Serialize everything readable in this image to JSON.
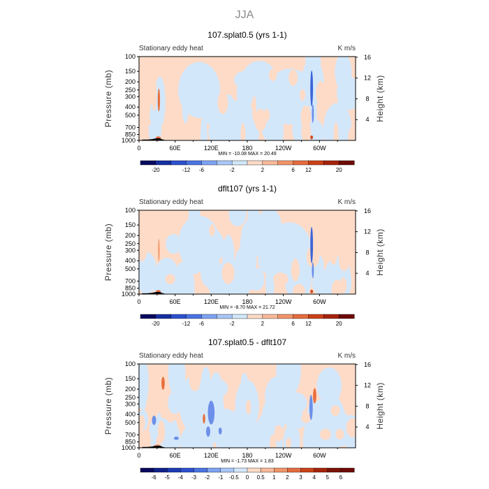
{
  "figure": {
    "season_title": "JJA",
    "colors": {
      "background": "#ffffff",
      "text": "#000000",
      "neg1": "#d3e7fb",
      "pos1": "#fddbc7",
      "neg3": "#3b64d8",
      "pos3": "#d2481e",
      "topography": "#000000"
    }
  },
  "chart_data": [
    {
      "type": "heatmap",
      "title": "107.splat0.5 (yrs 1-1)",
      "left_label": "Stationary eddy heat",
      "right_label": "K m/s",
      "ylabel": "Pressure (mb)",
      "ylabel_right": "Height (km)",
      "x_ticks": [
        "0",
        "60E",
        "120E",
        "180",
        "120W",
        "60W"
      ],
      "x_values": [
        0,
        60,
        120,
        180,
        240,
        300
      ],
      "xlim": [
        0,
        360
      ],
      "y_ticks": [
        "100",
        "150",
        "200",
        "250",
        "300",
        "400",
        "500",
        "700",
        "850",
        "1000"
      ],
      "y_values": [
        100,
        150,
        200,
        250,
        300,
        400,
        500,
        700,
        850,
        1000
      ],
      "ylim": [
        100,
        1000
      ],
      "height_ticks": [
        "4",
        "8",
        "12",
        "16"
      ],
      "height_values": [
        4,
        8,
        12,
        16
      ],
      "min_max_text": "MIN = -10.08   MAX = 20.49",
      "colorbar_labels": [
        "-20",
        "-12",
        "-6",
        "-2",
        "2",
        "6",
        "12",
        "20"
      ],
      "colorbar_colors": [
        "#08095e",
        "#1730a3",
        "#2d51cf",
        "#4a74e5",
        "#7ea3f2",
        "#a9c7f7",
        "#d3e7fb",
        "#fddbc7",
        "#f9b99a",
        "#f2946a",
        "#e66c3f",
        "#cc4218",
        "#a6230b",
        "#6e0a05"
      ],
      "blobs": [
        {
          "lon": 33,
          "p": 330,
          "rx": 1.4,
          "ry": 100,
          "level": 2
        },
        {
          "lon": 32,
          "p": 930,
          "rx": 3,
          "ry": 35,
          "level": 2
        },
        {
          "lon": 25,
          "p": 280,
          "rx": 3,
          "ry": 120,
          "level": 0
        },
        {
          "lon": 287,
          "p": 240,
          "rx": 1.6,
          "ry": 110,
          "level": -3
        },
        {
          "lon": 287,
          "p": 920,
          "rx": 1.6,
          "ry": 50,
          "level": 3
        },
        {
          "lon": 289,
          "p": 480,
          "rx": 1.2,
          "ry": 120,
          "level": -2
        }
      ]
    },
    {
      "type": "heatmap",
      "title": "dflt107 (yrs 1-1)",
      "left_label": "Stationary eddy heat",
      "right_label": "K m/s",
      "ylabel": "Pressure (mb)",
      "ylabel_right": "Height (km)",
      "x_ticks": [
        "0",
        "60E",
        "120E",
        "180",
        "120W",
        "60W"
      ],
      "x_values": [
        0,
        60,
        120,
        180,
        240,
        300
      ],
      "xlim": [
        0,
        360
      ],
      "y_ticks": [
        "100",
        "150",
        "200",
        "250",
        "300",
        "400",
        "500",
        "700",
        "850",
        "1000"
      ],
      "y_values": [
        100,
        150,
        200,
        250,
        300,
        400,
        500,
        700,
        850,
        1000
      ],
      "ylim": [
        100,
        1000
      ],
      "height_ticks": [
        "4",
        "8",
        "12",
        "16"
      ],
      "height_values": [
        4,
        8,
        12,
        16
      ],
      "min_max_text": "MIN = -8.70   MAX = 21.72",
      "colorbar_labels": [
        "-20",
        "-12",
        "-6",
        "-2",
        "2",
        "6",
        "12",
        "20"
      ],
      "colorbar_colors": [
        "#08095e",
        "#1730a3",
        "#2d51cf",
        "#4a74e5",
        "#7ea3f2",
        "#a9c7f7",
        "#d3e7fb",
        "#fddbc7",
        "#f9b99a",
        "#f2946a",
        "#e66c3f",
        "#cc4218",
        "#a6230b",
        "#6e0a05"
      ],
      "blobs": [
        {
          "lon": 33,
          "p": 300,
          "rx": 1.2,
          "ry": 90,
          "level": 1
        },
        {
          "lon": 32,
          "p": 930,
          "rx": 3,
          "ry": 35,
          "level": 2
        },
        {
          "lon": 287,
          "p": 260,
          "rx": 1.6,
          "ry": 120,
          "level": -3
        },
        {
          "lon": 287,
          "p": 930,
          "rx": 1.6,
          "ry": 45,
          "level": 3
        },
        {
          "lon": 289,
          "p": 520,
          "rx": 1.2,
          "ry": 110,
          "level": -2
        }
      ]
    },
    {
      "type": "heatmap",
      "title": "107.splat0.5 - dflt107",
      "left_label": "Stationary eddy heat",
      "right_label": "K m/s",
      "ylabel": "Pressure (mb)",
      "ylabel_right": "Height (km)",
      "x_ticks": [
        "0",
        "60E",
        "120E",
        "180",
        "120W",
        "60W"
      ],
      "x_values": [
        0,
        60,
        120,
        180,
        240,
        300
      ],
      "xlim": [
        0,
        360
      ],
      "y_ticks": [
        "100",
        "150",
        "200",
        "250",
        "300",
        "400",
        "500",
        "700",
        "850",
        "1000"
      ],
      "y_values": [
        100,
        150,
        200,
        250,
        300,
        400,
        500,
        700,
        850,
        1000
      ],
      "ylim": [
        100,
        1000
      ],
      "height_ticks": [
        "4",
        "8",
        "12",
        "16"
      ],
      "height_values": [
        4,
        8,
        12,
        16
      ],
      "min_max_text": "MIN = -1.73   MAX = 1.83",
      "colorbar_labels": [
        "-6",
        "-5",
        "-4",
        "-3",
        "-2",
        "-1",
        "-0.5",
        "0",
        "0.5",
        "1",
        "2",
        "3",
        "4",
        "5",
        "6"
      ],
      "colorbar_colors": [
        "#08095e",
        "#10208a",
        "#1c3bb5",
        "#2d51cf",
        "#4a74e5",
        "#7ea3f2",
        "#a9c7f7",
        "#d3e7fb",
        "#fddbc7",
        "#f9b99a",
        "#f2946a",
        "#e66c3f",
        "#cc4218",
        "#a6230b",
        "#7c1207",
        "#6e0a05"
      ],
      "blobs": [
        {
          "lon": 120,
          "p": 380,
          "rx": 4,
          "ry": 120,
          "level": -2
        },
        {
          "lon": 135,
          "p": 630,
          "rx": 2,
          "ry": 60,
          "level": -2
        },
        {
          "lon": 25,
          "p": 470,
          "rx": 2.5,
          "ry": 60,
          "level": -2
        },
        {
          "lon": 62,
          "p": 770,
          "rx": 3,
          "ry": 35,
          "level": -2
        },
        {
          "lon": 286,
          "p": 330,
          "rx": 2,
          "ry": 110,
          "level": -2
        },
        {
          "lon": 292,
          "p": 240,
          "rx": 2,
          "ry": 50,
          "level": 2
        },
        {
          "lon": 40,
          "p": 170,
          "rx": 2,
          "ry": 30,
          "level": 2
        },
        {
          "lon": 108,
          "p": 450,
          "rx": 1.5,
          "ry": 60,
          "level": 2
        },
        {
          "lon": 115,
          "p": 640,
          "rx": 2.5,
          "ry": 90,
          "level": -2
        },
        {
          "lon": 30,
          "p": 950,
          "rx": 4,
          "ry": 40,
          "level": 1
        }
      ]
    }
  ]
}
